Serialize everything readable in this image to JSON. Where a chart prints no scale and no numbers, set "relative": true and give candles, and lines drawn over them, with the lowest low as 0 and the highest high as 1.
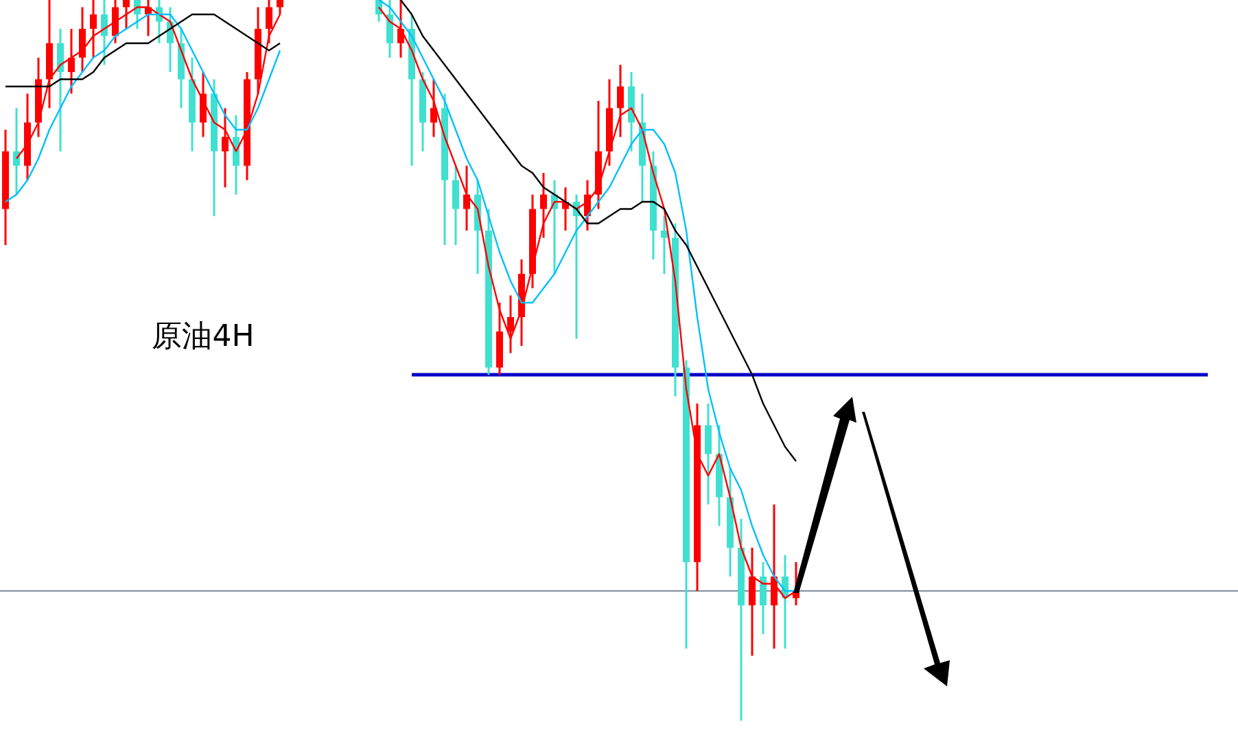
{
  "chart_data": {
    "type": "candlestick",
    "relative": true,
    "annotations": [
      "原油4H"
    ],
    "categories": [
      null,
      null,
      null,
      null,
      null,
      null,
      null,
      null,
      null,
      null,
      null,
      null,
      null,
      null,
      null,
      null,
      null,
      null,
      null,
      null,
      null,
      null,
      null,
      null,
      null,
      null,
      null,
      null,
      null,
      null,
      null,
      null,
      null,
      null,
      null,
      null,
      null,
      null,
      null,
      null,
      null,
      null,
      null,
      null,
      null,
      null,
      null,
      null,
      null,
      null,
      null,
      null,
      null,
      null,
      null,
      null,
      null,
      null,
      null,
      null,
      null,
      null,
      null,
      null,
      null,
      null,
      null,
      null,
      null,
      null,
      null,
      null,
      null
    ],
    "ohlc": [
      [
        0.71,
        0.82,
        0.66,
        0.79
      ],
      [
        0.79,
        0.85,
        0.73,
        0.77
      ],
      [
        0.77,
        0.87,
        0.75,
        0.83
      ],
      [
        0.83,
        0.92,
        0.81,
        0.89
      ],
      [
        0.89,
        1.0,
        0.85,
        0.94
      ],
      [
        0.94,
        0.96,
        0.79,
        0.9
      ],
      [
        0.9,
        0.96,
        0.87,
        0.92
      ],
      [
        0.92,
        0.99,
        0.9,
        0.96
      ],
      [
        0.96,
        1.0,
        0.92,
        0.98
      ],
      [
        0.98,
        1.0,
        0.91,
        0.95
      ],
      [
        0.95,
        1.0,
        0.94,
        0.99
      ],
      [
        0.99,
        1.0,
        0.96,
        1.0
      ],
      [
        1.0,
        1.0,
        0.96,
        0.98
      ],
      [
        0.98,
        1.0,
        0.95,
        0.99
      ],
      [
        0.99,
        1.0,
        0.94,
        0.97
      ],
      [
        0.97,
        0.99,
        0.9,
        0.94
      ],
      [
        0.94,
        0.96,
        0.85,
        0.89
      ],
      [
        0.89,
        0.92,
        0.79,
        0.83
      ],
      [
        0.83,
        0.9,
        0.81,
        0.87
      ],
      [
        0.87,
        0.89,
        0.7,
        0.79
      ],
      [
        0.79,
        0.85,
        0.74,
        0.81
      ],
      [
        0.81,
        0.84,
        0.73,
        0.77
      ],
      [
        0.77,
        0.9,
        0.75,
        0.89
      ],
      [
        0.89,
        0.99,
        0.87,
        0.96
      ],
      [
        0.96,
        1.0,
        0.94,
        0.99
      ],
      [
        0.99,
        1.0,
        0.98,
        1.0
      ],
      null,
      null,
      null,
      null,
      null,
      null,
      null,
      null,
      [
        1.0,
        1.0,
        0.97,
        0.98
      ],
      [
        0.98,
        1.0,
        0.92,
        0.94
      ],
      [
        0.94,
        1.0,
        0.92,
        0.96
      ],
      [
        0.96,
        0.98,
        0.77,
        0.89
      ],
      [
        0.89,
        0.9,
        0.79,
        0.83
      ],
      [
        0.83,
        0.89,
        0.81,
        0.85
      ],
      [
        0.85,
        0.87,
        0.66,
        0.75
      ],
      [
        0.75,
        0.77,
        0.66,
        0.71
      ],
      [
        0.71,
        0.77,
        0.68,
        0.73
      ],
      [
        0.73,
        0.75,
        0.62,
        0.68
      ],
      [
        0.68,
        0.71,
        0.48,
        0.49
      ],
      [
        0.49,
        0.58,
        0.48,
        0.54
      ],
      [
        0.54,
        0.59,
        0.51,
        0.56
      ],
      [
        0.56,
        0.64,
        0.52,
        0.62
      ],
      [
        0.62,
        0.73,
        0.6,
        0.71
      ],
      [
        0.71,
        0.76,
        0.67,
        0.73
      ],
      [
        0.73,
        0.75,
        0.62,
        0.71
      ],
      [
        0.71,
        0.74,
        0.68,
        0.72
      ],
      [
        0.72,
        0.73,
        0.53,
        0.7
      ],
      [
        0.7,
        0.75,
        0.68,
        0.73
      ],
      [
        0.73,
        0.86,
        0.71,
        0.79
      ],
      [
        0.79,
        0.89,
        0.77,
        0.85
      ],
      [
        0.85,
        0.91,
        0.81,
        0.88
      ],
      [
        0.88,
        0.9,
        0.79,
        0.83
      ],
      [
        0.83,
        0.87,
        0.72,
        0.77
      ],
      [
        0.77,
        0.79,
        0.64,
        0.68
      ],
      [
        0.68,
        0.7,
        0.62,
        0.67
      ],
      [
        0.67,
        0.69,
        0.45,
        0.49
      ],
      [
        0.49,
        0.5,
        0.1,
        0.22
      ],
      [
        0.22,
        0.44,
        0.18,
        0.41
      ],
      [
        0.41,
        0.44,
        0.3,
        0.37
      ],
      [
        0.37,
        0.41,
        0.27,
        0.31
      ],
      [
        0.31,
        0.35,
        0.2,
        0.24
      ],
      [
        0.24,
        0.28,
        0.0,
        0.16
      ],
      [
        0.16,
        0.24,
        0.09,
        0.2
      ],
      [
        0.2,
        0.22,
        0.12,
        0.16
      ],
      [
        0.16,
        0.3,
        0.1,
        0.2
      ],
      [
        0.2,
        0.23,
        0.1,
        0.17
      ],
      [
        0.17,
        0.22,
        0.16,
        0.18
      ]
    ],
    "colors": [
      "#ff0000",
      "#40e0d0",
      "#ff0000",
      "#ff0000",
      "#ff0000",
      "#40e0d0",
      "#ff0000",
      "#ff0000",
      "#ff0000",
      "#40e0d0",
      "#ff0000",
      "#ff0000",
      "#40e0d0",
      "#ff0000",
      "#40e0d0",
      "#40e0d0",
      "#40e0d0",
      "#40e0d0",
      "#ff0000",
      "#40e0d0",
      "#ff0000",
      "#40e0d0",
      "#ff0000",
      "#ff0000",
      "#ff0000",
      "#ff0000",
      null,
      null,
      null,
      null,
      null,
      null,
      null,
      null,
      "#40e0d0",
      "#40e0d0",
      "#ff0000",
      "#40e0d0",
      "#40e0d0",
      "#ff0000",
      "#40e0d0",
      "#40e0d0",
      "#ff0000",
      "#40e0d0",
      "#40e0d0",
      "#ff0000",
      "#ff0000",
      "#ff0000",
      "#ff0000",
      "#ff0000",
      "#40e0d0",
      "#ff0000",
      "#40e0d0",
      "#ff0000",
      "#ff0000",
      "#ff0000",
      "#ff0000",
      "#40e0d0",
      "#40e0d0",
      "#40e0d0",
      "#40e0d0",
      "#40e0d0",
      "#40e0d0",
      "#ff0000",
      "#40e0d0",
      "#40e0d0",
      "#40e0d0",
      "#40e0d0",
      "#ff0000",
      "#40e0d0",
      "#ff0000",
      "#40e0d0",
      "#ff0000"
    ],
    "series": [
      {
        "type": "line",
        "color": "#ff0000",
        "values": [
          null,
          0.78,
          0.8,
          0.83,
          0.89,
          0.91,
          0.92,
          0.93,
          0.95,
          0.96,
          0.97,
          0.98,
          0.99,
          0.99,
          0.98,
          0.97,
          0.93,
          0.89,
          0.86,
          0.83,
          0.82,
          0.79,
          0.82,
          0.87,
          0.95,
          0.98,
          null,
          null,
          null,
          null,
          null,
          null,
          null,
          null,
          0.99,
          0.97,
          0.96,
          0.93,
          0.89,
          0.86,
          0.81,
          0.77,
          0.73,
          0.71,
          0.63,
          0.57,
          0.53,
          0.57,
          0.63,
          0.69,
          0.72,
          0.72,
          0.71,
          0.72,
          0.74,
          0.79,
          0.84,
          0.85,
          0.82,
          0.76,
          0.71,
          0.61,
          0.46,
          0.37,
          0.34,
          0.37,
          0.31,
          0.24,
          0.2,
          0.19,
          0.19,
          0.17,
          0.18
        ]
      },
      {
        "type": "line",
        "color": "#00bfff",
        "values": [
          0.72,
          0.73,
          0.75,
          0.78,
          0.82,
          0.85,
          0.88,
          0.9,
          0.92,
          0.93,
          0.95,
          0.96,
          0.97,
          0.98,
          0.98,
          0.98,
          0.96,
          0.93,
          0.9,
          0.87,
          0.84,
          0.82,
          0.82,
          0.85,
          0.89,
          0.93,
          null,
          null,
          null,
          null,
          null,
          null,
          null,
          null,
          1.0,
          0.99,
          0.97,
          0.95,
          0.92,
          0.89,
          0.86,
          0.82,
          0.78,
          0.75,
          0.7,
          0.65,
          0.61,
          0.58,
          0.58,
          0.6,
          0.62,
          0.65,
          0.68,
          0.7,
          0.72,
          0.74,
          0.77,
          0.8,
          0.82,
          0.82,
          0.8,
          0.76,
          0.68,
          0.56,
          0.46,
          0.4,
          0.35,
          0.32,
          0.27,
          0.23,
          0.2,
          0.18,
          0.18
        ]
      },
      {
        "type": "line",
        "color": "#000000",
        "values": [
          0.88,
          0.88,
          0.88,
          0.88,
          0.88,
          0.89,
          0.89,
          0.89,
          0.9,
          0.92,
          0.93,
          0.94,
          0.94,
          0.94,
          0.95,
          0.96,
          0.97,
          0.98,
          0.98,
          0.98,
          0.97,
          0.96,
          0.95,
          0.94,
          0.93,
          0.94,
          null,
          null,
          null,
          null,
          null,
          null,
          null,
          null,
          null,
          null,
          1.0,
          0.98,
          0.95,
          0.93,
          0.91,
          0.89,
          0.87,
          0.85,
          0.83,
          0.81,
          0.79,
          0.77,
          0.76,
          0.74,
          0.73,
          0.72,
          0.71,
          0.69,
          0.69,
          0.7,
          0.71,
          0.71,
          0.72,
          0.72,
          0.71,
          0.68,
          0.66,
          0.63,
          0.6,
          0.57,
          0.54,
          0.51,
          0.48,
          0.44,
          0.41,
          0.38,
          0.36
        ]
      }
    ],
    "ref_lines": [
      {
        "axis": "y",
        "value": 0.48,
        "color": "#0000c8"
      },
      {
        "axis": "y",
        "value": 0.18,
        "color": "#7f8c9a"
      }
    ]
  }
}
